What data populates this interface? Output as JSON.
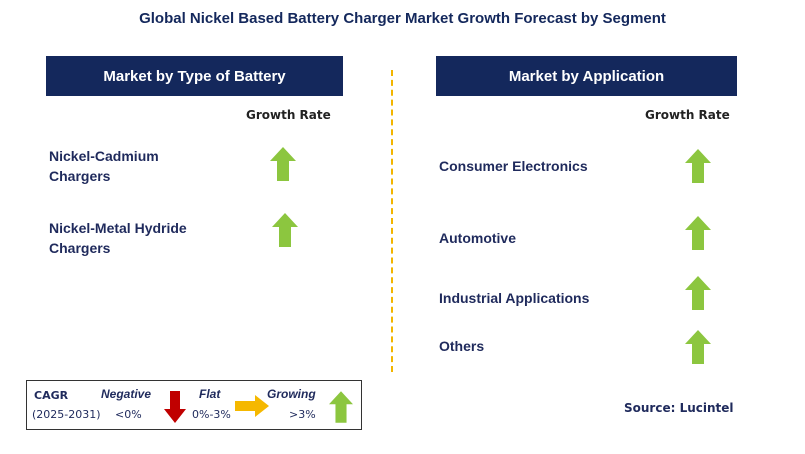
{
  "title": "Global Nickel Based Battery Charger Market Growth Forecast by Segment",
  "left_panel": {
    "header": "Market by Type of Battery",
    "rate_label": "Growth Rate",
    "items": [
      {
        "line1": "Nickel-Cadmium",
        "line2": "Chargers",
        "trend": "growing"
      },
      {
        "line1": "Nickel-Metal Hydride",
        "line2": "Chargers",
        "trend": "growing"
      }
    ]
  },
  "right_panel": {
    "header": "Market by Application",
    "rate_label": "Growth Rate",
    "items": [
      {
        "label": "Consumer Electronics",
        "trend": "growing"
      },
      {
        "label": "Automotive",
        "trend": "growing"
      },
      {
        "label": "Industrial Applications",
        "trend": "growing"
      },
      {
        "label": "Others",
        "trend": "growing"
      }
    ]
  },
  "legend": {
    "cagr": "CAGR",
    "period": "(2025-2031)",
    "negative": "Negative",
    "negative_range": "<0%",
    "flat": "Flat",
    "flat_range": "0%-3%",
    "growing": "Growing",
    "growing_range": ">3%"
  },
  "source": "Source: Lucintel",
  "colors": {
    "navy": "#14285c",
    "growing_arrow": "#8cc63f",
    "flat_arrow": "#f5b800",
    "negative_arrow": "#c00000",
    "divider": "#f2b500"
  }
}
